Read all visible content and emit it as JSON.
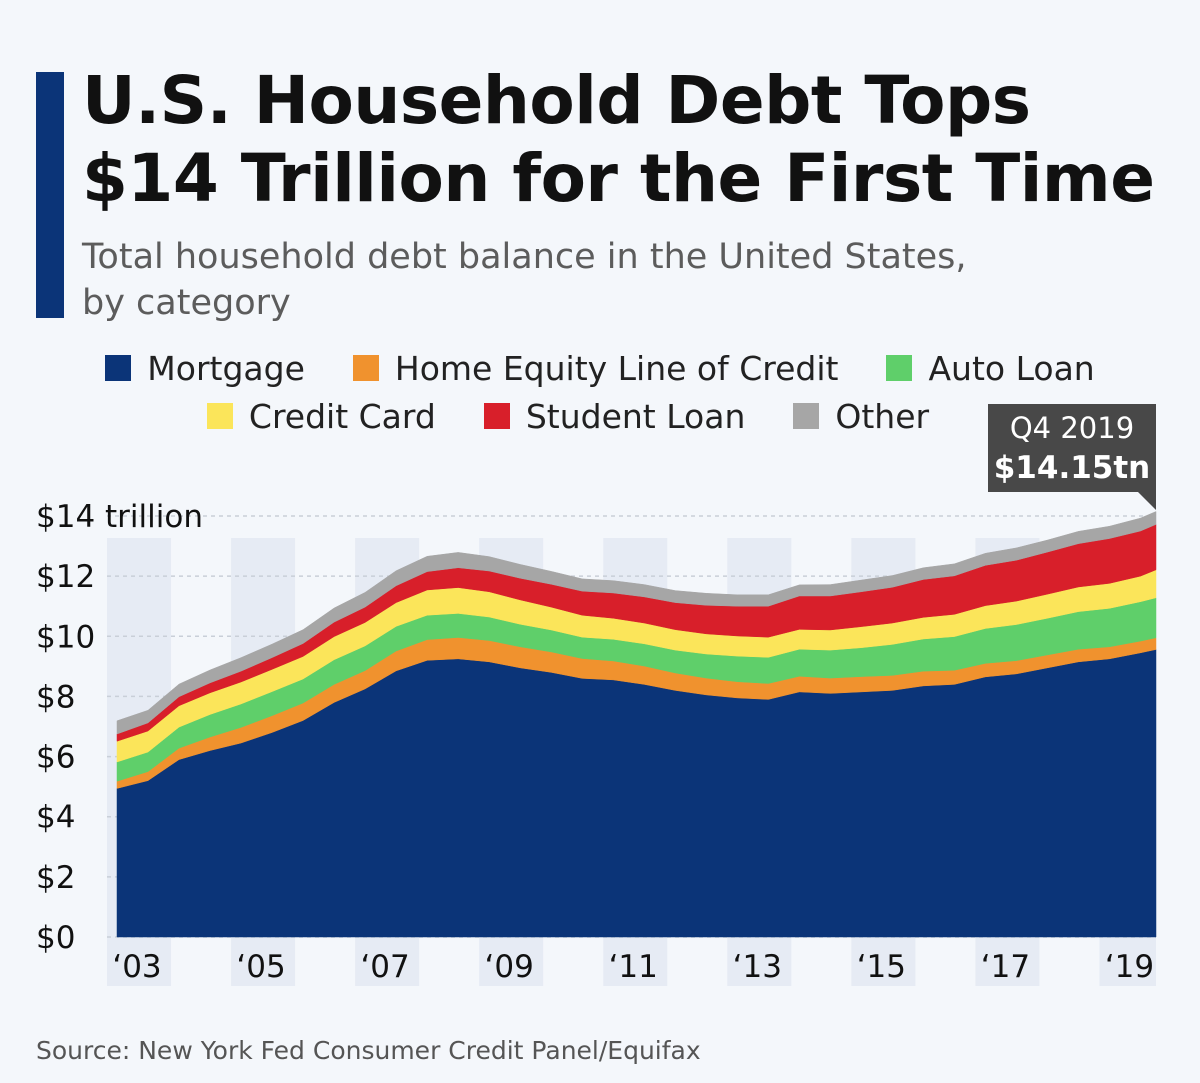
{
  "title": {
    "line1": "U.S. Household Debt Tops",
    "line2": "$14 Trillion for the First Time"
  },
  "subtitle": {
    "line1": "Total household debt balance in the United States,",
    "line2": "by category"
  },
  "source": "Source: New York Fed Consumer Credit Panel/Equifax",
  "callout": {
    "period": "Q4 2019",
    "value": "$14.15tn"
  },
  "colors": {
    "background": "#f4f7fb",
    "accent": "#0b3478",
    "year_band": "#e6ebf4",
    "callout": "#484848"
  },
  "legend": [
    {
      "name": "Mortgage",
      "color": "#0b3478"
    },
    {
      "name": "Home Equity Line of Credit",
      "color": "#f0922e"
    },
    {
      "name": "Auto Loan",
      "color": "#5fcf6a"
    },
    {
      "name": "Credit Card",
      "color": "#fbe55a"
    },
    {
      "name": "Student Loan",
      "color": "#d81f2a"
    },
    {
      "name": "Other",
      "color": "#a6a6a6"
    }
  ],
  "chart_data": {
    "type": "area",
    "stacked": true,
    "ylim": [
      0,
      14
    ],
    "y_ticks": [
      {
        "value": 14,
        "label": "$14 trillion"
      },
      {
        "value": 12,
        "label": "$12"
      },
      {
        "value": 10,
        "label": "$10"
      },
      {
        "value": 8,
        "label": "$8"
      },
      {
        "value": 6,
        "label": "$6"
      },
      {
        "value": 4,
        "label": "$4"
      },
      {
        "value": 2,
        "label": "$2"
      },
      {
        "value": 0,
        "label": "$0"
      }
    ],
    "x_ticks": [
      {
        "year": 2003,
        "label": "‘03"
      },
      {
        "year": 2005,
        "label": "‘05"
      },
      {
        "year": 2007,
        "label": "‘07"
      },
      {
        "year": 2009,
        "label": "‘09"
      },
      {
        "year": 2011,
        "label": "‘11"
      },
      {
        "year": 2013,
        "label": "‘13"
      },
      {
        "year": 2015,
        "label": "‘15"
      },
      {
        "year": 2017,
        "label": "‘17"
      },
      {
        "year": 2019,
        "label": "‘19"
      }
    ],
    "grid": true,
    "xlim": [
      "2003-Q1",
      "2019-Q4"
    ],
    "legend_position": "top",
    "x": [
      "2003-Q1",
      "2003-Q3",
      "2004-Q1",
      "2004-Q3",
      "2005-Q1",
      "2005-Q3",
      "2006-Q1",
      "2006-Q3",
      "2007-Q1",
      "2007-Q3",
      "2008-Q1",
      "2008-Q3",
      "2009-Q1",
      "2009-Q3",
      "2010-Q1",
      "2010-Q3",
      "2011-Q1",
      "2011-Q3",
      "2012-Q1",
      "2012-Q3",
      "2013-Q1",
      "2013-Q3",
      "2014-Q1",
      "2014-Q3",
      "2015-Q1",
      "2015-Q3",
      "2016-Q1",
      "2016-Q3",
      "2017-Q1",
      "2017-Q3",
      "2018-Q1",
      "2018-Q3",
      "2019-Q1",
      "2019-Q3",
      "2019-Q4"
    ],
    "series": [
      {
        "name": "Mortgage",
        "values": [
          4.94,
          5.2,
          5.9,
          6.2,
          6.45,
          6.8,
          7.2,
          7.8,
          8.25,
          8.85,
          9.2,
          9.25,
          9.15,
          8.95,
          8.8,
          8.6,
          8.55,
          8.4,
          8.2,
          8.05,
          7.95,
          7.9,
          8.15,
          8.1,
          8.15,
          8.2,
          8.35,
          8.4,
          8.65,
          8.75,
          8.95,
          9.15,
          9.25,
          9.45,
          9.56
        ]
      },
      {
        "name": "Home Equity Line of Credit",
        "values": [
          0.24,
          0.3,
          0.38,
          0.45,
          0.52,
          0.56,
          0.58,
          0.6,
          0.61,
          0.66,
          0.69,
          0.71,
          0.71,
          0.7,
          0.68,
          0.66,
          0.63,
          0.61,
          0.58,
          0.56,
          0.54,
          0.53,
          0.52,
          0.51,
          0.51,
          0.5,
          0.49,
          0.47,
          0.45,
          0.44,
          0.43,
          0.42,
          0.4,
          0.39,
          0.39
        ]
      },
      {
        "name": "Auto Loan",
        "values": [
          0.64,
          0.65,
          0.7,
          0.75,
          0.78,
          0.8,
          0.8,
          0.82,
          0.82,
          0.82,
          0.81,
          0.8,
          0.78,
          0.75,
          0.73,
          0.71,
          0.72,
          0.74,
          0.76,
          0.8,
          0.85,
          0.87,
          0.9,
          0.93,
          0.96,
          1.03,
          1.07,
          1.12,
          1.16,
          1.2,
          1.22,
          1.25,
          1.28,
          1.31,
          1.33
        ]
      },
      {
        "name": "Credit Card",
        "values": [
          0.69,
          0.7,
          0.71,
          0.72,
          0.73,
          0.74,
          0.75,
          0.77,
          0.78,
          0.79,
          0.84,
          0.86,
          0.84,
          0.81,
          0.76,
          0.73,
          0.7,
          0.69,
          0.68,
          0.67,
          0.67,
          0.67,
          0.66,
          0.67,
          0.7,
          0.71,
          0.72,
          0.74,
          0.76,
          0.78,
          0.8,
          0.82,
          0.83,
          0.85,
          0.93
        ]
      },
      {
        "name": "Student Loan",
        "values": [
          0.24,
          0.27,
          0.3,
          0.33,
          0.36,
          0.39,
          0.43,
          0.48,
          0.51,
          0.56,
          0.61,
          0.66,
          0.69,
          0.72,
          0.76,
          0.8,
          0.84,
          0.87,
          0.9,
          0.95,
          0.99,
          1.03,
          1.11,
          1.13,
          1.16,
          1.19,
          1.26,
          1.28,
          1.34,
          1.36,
          1.4,
          1.44,
          1.49,
          1.5,
          1.51
        ]
      },
      {
        "name": "Other",
        "values": [
          0.44,
          0.42,
          0.42,
          0.43,
          0.45,
          0.45,
          0.46,
          0.47,
          0.49,
          0.5,
          0.51,
          0.51,
          0.48,
          0.46,
          0.43,
          0.41,
          0.41,
          0.41,
          0.4,
          0.4,
          0.38,
          0.38,
          0.37,
          0.38,
          0.39,
          0.39,
          0.39,
          0.4,
          0.4,
          0.41,
          0.4,
          0.41,
          0.41,
          0.43,
          0.43
        ]
      }
    ]
  }
}
